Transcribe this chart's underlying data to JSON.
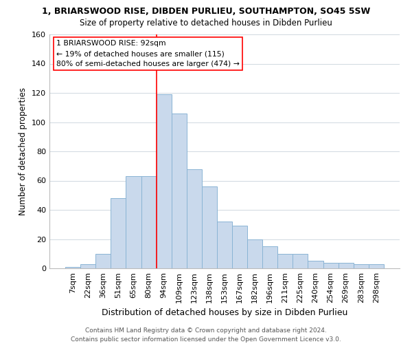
{
  "title": "1, BRIARSWOOD RISE, DIBDEN PURLIEU, SOUTHAMPTON, SO45 5SW",
  "subtitle": "Size of property relative to detached houses in Dibden Purlieu",
  "xlabel": "Distribution of detached houses by size in Dibden Purlieu",
  "ylabel": "Number of detached properties",
  "footer_line1": "Contains HM Land Registry data © Crown copyright and database right 2024.",
  "footer_line2": "Contains public sector information licensed under the Open Government Licence v3.0.",
  "bar_labels": [
    "7sqm",
    "22sqm",
    "36sqm",
    "51sqm",
    "65sqm",
    "80sqm",
    "94sqm",
    "109sqm",
    "123sqm",
    "138sqm",
    "153sqm",
    "167sqm",
    "182sqm",
    "196sqm",
    "211sqm",
    "225sqm",
    "240sqm",
    "254sqm",
    "269sqm",
    "283sqm",
    "298sqm"
  ],
  "bar_values": [
    1,
    3,
    10,
    48,
    63,
    63,
    119,
    106,
    68,
    56,
    32,
    29,
    20,
    15,
    10,
    10,
    5,
    4,
    4,
    3,
    3
  ],
  "bar_color": "#c9d9ec",
  "bar_edgecolor": "#8ab4d4",
  "grid_color": "#d0d8e0",
  "vline_color": "red",
  "vline_idx": 6,
  "annotation_title": "1 BRIARSWOOD RISE: 92sqm",
  "annotation_line1": "← 19% of detached houses are smaller (115)",
  "annotation_line2": "80% of semi-detached houses are larger (474) →",
  "annotation_box_color": "white",
  "annotation_box_edgecolor": "red",
  "ylim": [
    0,
    160
  ],
  "yticks": [
    0,
    20,
    40,
    60,
    80,
    100,
    120,
    140,
    160
  ],
  "title_fontsize": 9,
  "subtitle_fontsize": 8.5,
  "ylabel_fontsize": 8.5,
  "xlabel_fontsize": 9,
  "tick_fontsize": 8,
  "footer_fontsize": 6.5
}
